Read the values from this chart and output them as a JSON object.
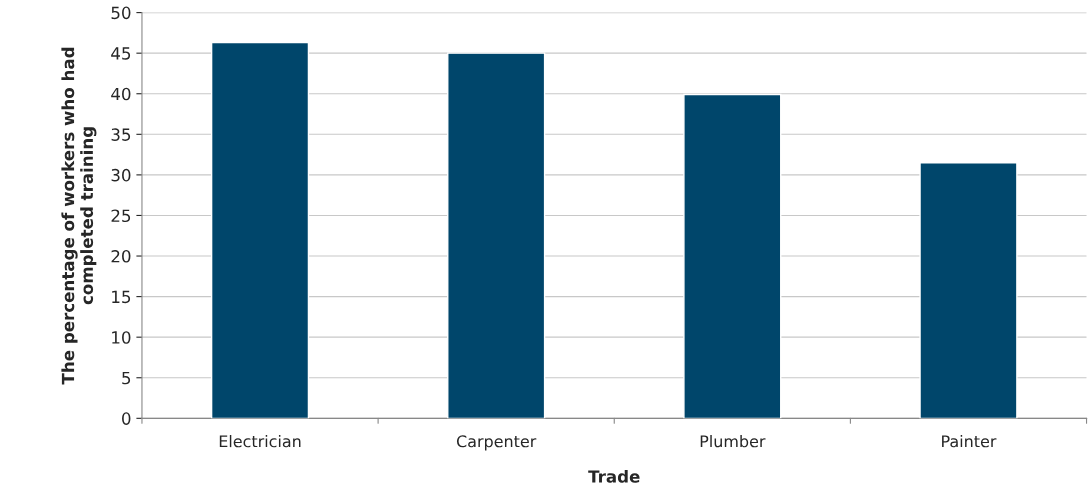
{
  "chart_data": {
    "type": "bar",
    "xlabel": "Trade",
    "ylabel": "The percentage of workers who had\ncompleted training",
    "categories": [
      "Electrician",
      "Carpenter",
      "Plumber",
      "Painter"
    ],
    "values": [
      46.3,
      45.0,
      39.9,
      31.5
    ],
    "color": "#00466b",
    "ylim": [
      0,
      50
    ],
    "yticks": [
      0,
      5,
      10,
      15,
      20,
      25,
      30,
      35,
      40,
      45,
      50
    ],
    "grid": "y",
    "legend": false
  }
}
